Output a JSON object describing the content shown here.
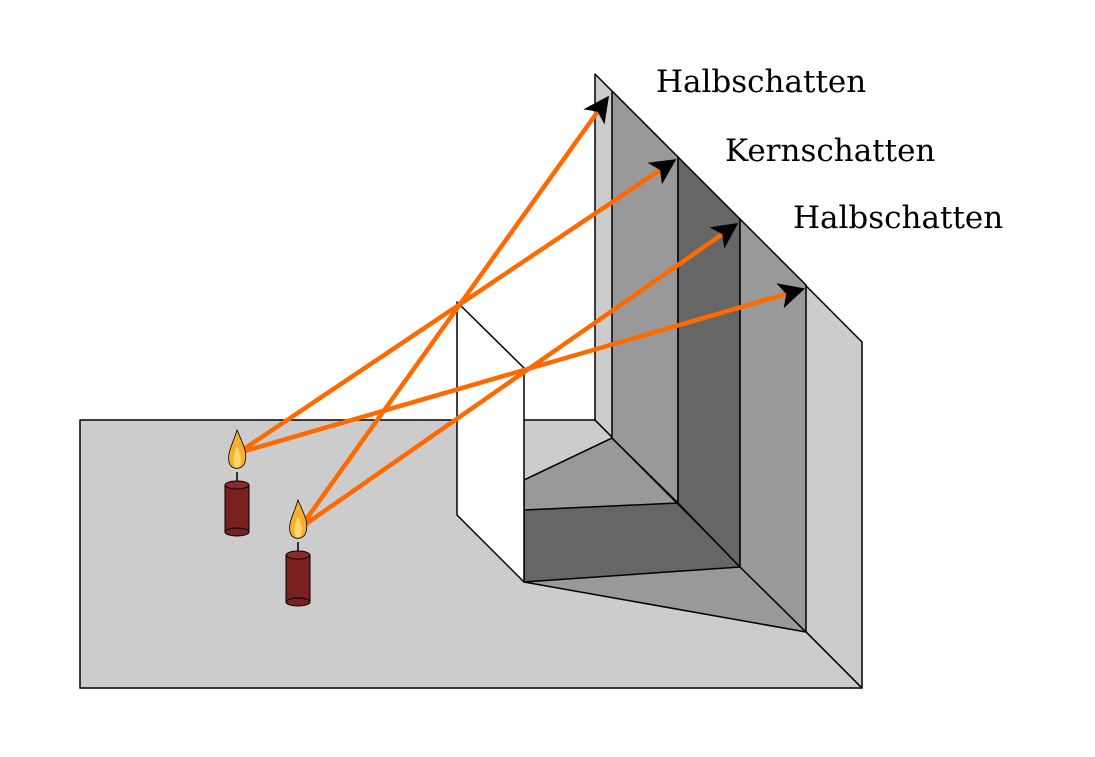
{
  "labels": {
    "penumbra_top": "Halbschatten",
    "umbra": "Kernschatten",
    "penumbra_bottom": "Halbschatten"
  },
  "colors": {
    "background": "#ffffff",
    "table": "#cccccc",
    "light_shadow": "#999999",
    "core_shadow": "#666666",
    "ray": "#ff6a00",
    "candle": "#7a2020",
    "flame": "#f5b030"
  },
  "icons": [
    "candle-icon",
    "flame-icon",
    "arrow-head-icon"
  ]
}
